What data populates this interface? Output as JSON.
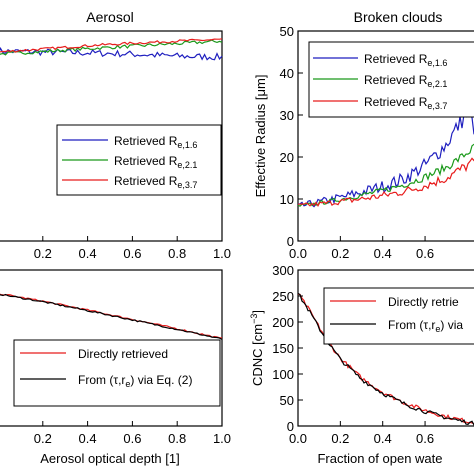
{
  "colors": {
    "blue": "#1f1fbf",
    "green": "#1a991a",
    "red": "#e81c1c",
    "black": "#000000"
  },
  "chart_data": [
    {
      "id": "aerosol-re",
      "type": "line",
      "title": "Aerosol",
      "xlabel": "",
      "ylabel": "",
      "xlim": [
        0,
        1.0
      ],
      "ylim": [
        0,
        50
      ],
      "grid": false,
      "legend_position": "center-right",
      "series": [
        {
          "name": "Retrieved R",
          "sub": "e,1.6",
          "color": "#1f1fbf",
          "x": [
            0,
            0.2,
            0.4,
            0.6,
            0.8,
            1.0
          ],
          "y": [
            45.2,
            45.0,
            44.8,
            44.5,
            44.0,
            43.8
          ],
          "noise": 0.8
        },
        {
          "name": "Retrieved R",
          "sub": "e,2.1",
          "color": "#1a991a",
          "x": [
            0,
            0.2,
            0.4,
            0.6,
            0.8,
            1.0
          ],
          "y": [
            44.5,
            45.1,
            45.8,
            46.4,
            47.0,
            47.6
          ],
          "noise": 0.4
        },
        {
          "name": "Retrieved R",
          "sub": "e,3.7",
          "color": "#e81c1c",
          "x": [
            0,
            0.2,
            0.4,
            0.6,
            0.8,
            1.0
          ],
          "y": [
            45.0,
            45.7,
            46.5,
            47.1,
            47.6,
            48.0
          ],
          "noise": 0.3
        }
      ]
    },
    {
      "id": "clouds-re",
      "type": "line",
      "title": "Broken clouds",
      "xlabel": "",
      "ylabel": "Effective Radius [μm]",
      "xlim": [
        0,
        0.85
      ],
      "ylim": [
        0,
        50
      ],
      "grid": false,
      "legend_position": "top-left",
      "yticks": [
        0,
        10,
        20,
        30,
        40,
        50
      ],
      "series": [
        {
          "name": "Retrieved R",
          "sub": "e,1.6",
          "color": "#1f1fbf",
          "x": [
            0,
            0.1,
            0.2,
            0.3,
            0.4,
            0.5,
            0.6,
            0.7,
            0.75,
            0.8,
            0.85
          ],
          "y": [
            8.2,
            9.2,
            10.3,
            11.6,
            13.0,
            14.8,
            18.0,
            23.0,
            27.0,
            30.5,
            25.0
          ],
          "noise": 0.8
        },
        {
          "name": "Retrieved R",
          "sub": "e,2.1",
          "color": "#1a991a",
          "x": [
            0,
            0.1,
            0.2,
            0.3,
            0.4,
            0.5,
            0.6,
            0.7,
            0.8,
            0.85
          ],
          "y": [
            8.3,
            9.0,
            9.9,
            10.9,
            12.0,
            13.4,
            15.2,
            17.5,
            21.0,
            23.0
          ],
          "noise": 0.4
        },
        {
          "name": "Retrieved R",
          "sub": "e,3.7",
          "color": "#e81c1c",
          "x": [
            0,
            0.1,
            0.2,
            0.3,
            0.4,
            0.5,
            0.6,
            0.7,
            0.8,
            0.85
          ],
          "y": [
            8.4,
            8.8,
            9.4,
            10.0,
            10.8,
            11.8,
            13.2,
            15.0,
            18.0,
            19.5
          ],
          "noise": 0.5
        }
      ]
    },
    {
      "id": "aerosol-cdnc",
      "type": "line",
      "title": "",
      "xlabel": "Aerosol optical depth [1]",
      "ylabel": "",
      "xlim": [
        0,
        1.0
      ],
      "ylim": [
        0,
        300
      ],
      "xticks": [
        "0.2",
        "0.4",
        "0.6",
        "0.8",
        "1.0"
      ],
      "grid": false,
      "legend_position": "bottom-right",
      "series": [
        {
          "name": "Directly retrieved",
          "color": "#e81c1c",
          "x": [
            0,
            0.2,
            0.4,
            0.6,
            0.8,
            1.0
          ],
          "y": [
            255,
            240,
            223,
            205,
            187,
            168
          ],
          "noise": 1.5
        },
        {
          "name": "From (τ,r",
          "sub": "e",
          "suffix": ") via Eq. (2)",
          "color": "#000000",
          "x": [
            0,
            0.2,
            0.4,
            0.6,
            0.8,
            1.0
          ],
          "y": [
            254,
            239,
            222,
            204,
            186,
            167
          ],
          "noise": 1.5
        }
      ]
    },
    {
      "id": "clouds-cdnc",
      "type": "line",
      "title": "",
      "xlabel": "Fraction of open wate",
      "ylabel": "CDNC [cm",
      "ylabel_sup": "−3",
      "ylabel_end": "]",
      "xlim": [
        0,
        0.85
      ],
      "ylim": [
        0,
        300
      ],
      "xticks": [
        "0.0",
        "0.2",
        "0.4",
        "0.6"
      ],
      "yticks": [
        "0",
        "50",
        "100",
        "150",
        "200",
        "250",
        "300"
      ],
      "grid": false,
      "legend_position": "top-right",
      "series": [
        {
          "name": "Directly retrie",
          "color": "#e81c1c",
          "x": [
            0,
            0.05,
            0.1,
            0.15,
            0.2,
            0.3,
            0.4,
            0.5,
            0.6,
            0.7,
            0.8,
            0.85
          ],
          "y": [
            255,
            225,
            190,
            158,
            130,
            92,
            65,
            45,
            30,
            18,
            9,
            5
          ],
          "noise": 4
        },
        {
          "name": "From (τ,r",
          "sub": "e",
          "suffix": ") via",
          "color": "#000000",
          "x": [
            0,
            0.05,
            0.1,
            0.15,
            0.2,
            0.3,
            0.4,
            0.5,
            0.6,
            0.7,
            0.8,
            0.85
          ],
          "y": [
            255,
            223,
            188,
            156,
            128,
            90,
            63,
            43,
            28,
            16,
            7,
            3
          ],
          "noise": 4
        }
      ]
    }
  ]
}
